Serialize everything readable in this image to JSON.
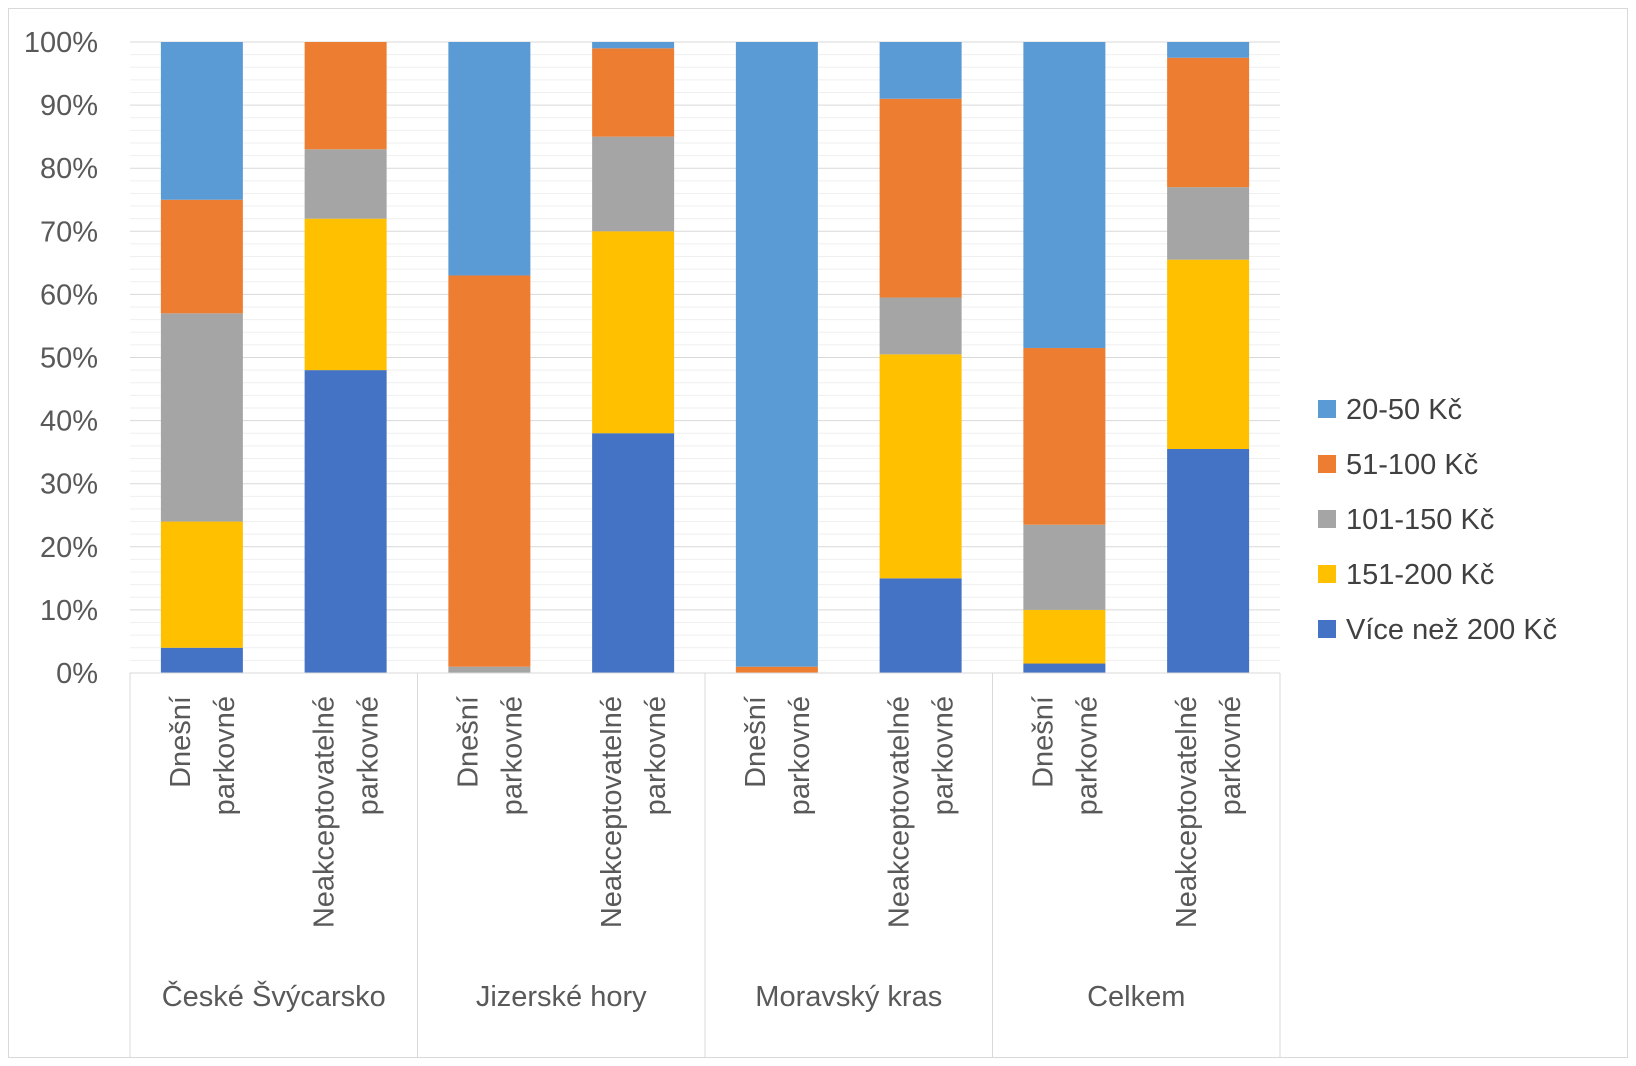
{
  "chart_data": {
    "type": "bar",
    "stacked": true,
    "percent_stacked": true,
    "groups": [
      {
        "name": "České Švýcarsko",
        "categories": [
          "Dnešní parkovné",
          "Neakceptovatelné parkovné"
        ]
      },
      {
        "name": "Jizerské hory",
        "categories": [
          "Dnešní parkovné",
          "Neakceptovatelné parkovné"
        ]
      },
      {
        "name": "Moravský kras",
        "categories": [
          "Dnešní parkovné",
          "Neakceptovatelné parkovné"
        ]
      },
      {
        "name": "Celkem",
        "categories": [
          "Dnešní parkovné",
          "Neakceptovatelné parkovné"
        ]
      }
    ],
    "series": [
      {
        "name": "Více než 200 Kč",
        "color": "#4472C4",
        "values": [
          4,
          48,
          0,
          38,
          0,
          15,
          1.5,
          35.5
        ]
      },
      {
        "name": "151-200 Kč",
        "color": "#FFC000",
        "values": [
          20,
          24,
          0,
          32,
          0,
          35.5,
          8.5,
          30
        ]
      },
      {
        "name": "101-150 Kč",
        "color": "#A5A5A5",
        "values": [
          33,
          11,
          1,
          15,
          0,
          9,
          13.5,
          11.5
        ]
      },
      {
        "name": "51-100 Kč",
        "color": "#ED7D31",
        "values": [
          18,
          17,
          62,
          14,
          1,
          31.5,
          28,
          20.5
        ]
      },
      {
        "name": "20-50 Kč",
        "color": "#5B9BD5",
        "values": [
          25,
          0,
          37,
          1,
          99,
          9,
          48.5,
          2.5
        ]
      }
    ],
    "legend_order": [
      "20-50 Kč",
      "51-100 Kč",
      "101-150 Kč",
      "151-200 Kč",
      "Více než 200 Kč"
    ],
    "legend_position": "right",
    "y_axis": {
      "min": 0,
      "max": 100,
      "step": 10,
      "unit": "%",
      "tick_labels": [
        "0%",
        "10%",
        "20%",
        "30%",
        "40%",
        "50%",
        "60%",
        "70%",
        "80%",
        "90%",
        "100%"
      ]
    },
    "grid": true,
    "title": "",
    "xlabel": "",
    "ylabel": ""
  }
}
